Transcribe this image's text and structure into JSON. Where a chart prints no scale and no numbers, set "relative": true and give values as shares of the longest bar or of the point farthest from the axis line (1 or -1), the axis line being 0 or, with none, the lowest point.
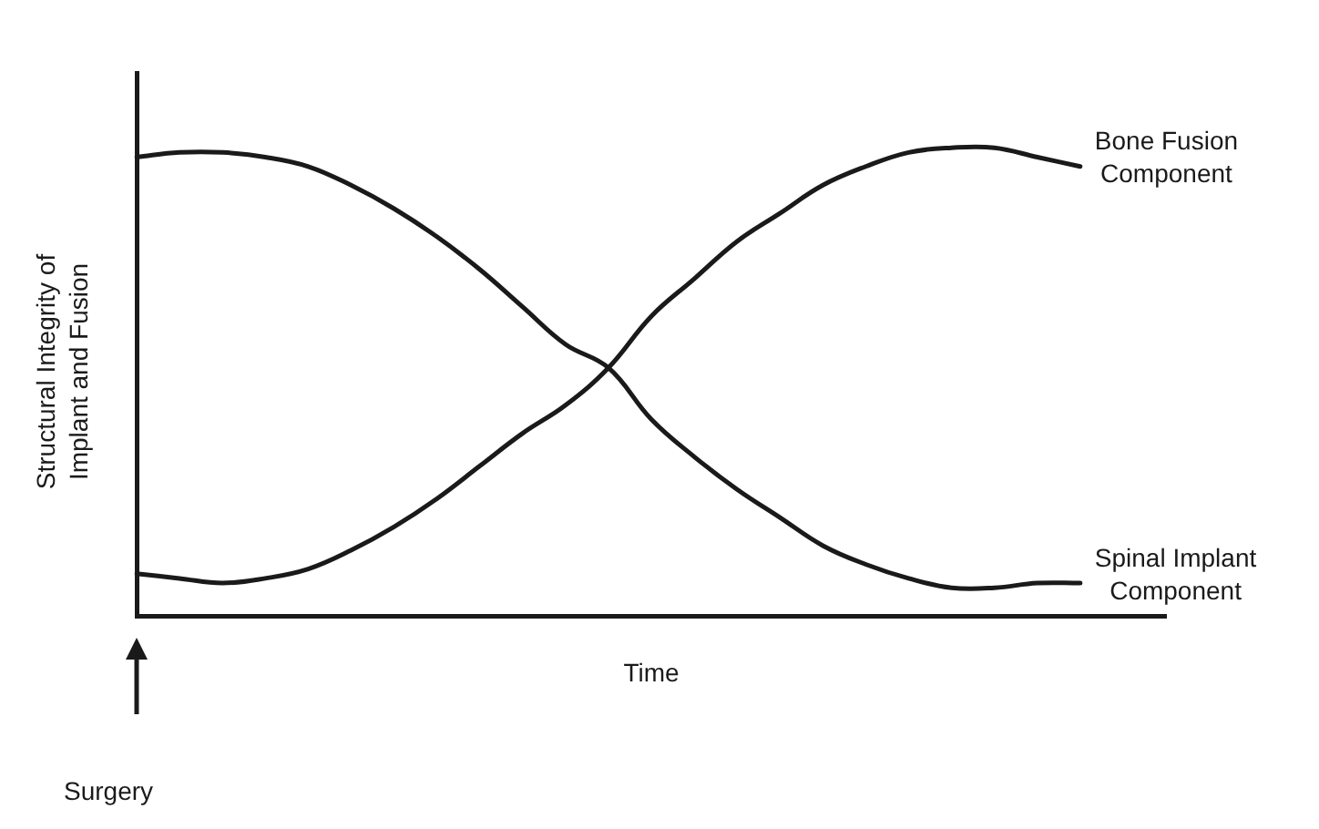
{
  "chart_data": {
    "type": "line",
    "relative": true,
    "xlabel": "Time",
    "ylabel": "Structural Integrity of Implant and Fusion",
    "annotations": [
      "Surgery"
    ],
    "legend": false,
    "grid": false,
    "marker": "none",
    "line_style": "solid",
    "categories": [
      null,
      null,
      null,
      null,
      null,
      null,
      null,
      null,
      null,
      null,
      null,
      null,
      null,
      null,
      null,
      null,
      null,
      null,
      null,
      null,
      null,
      null,
      null,
      null,
      null
    ],
    "series": [
      {
        "name": "Bone Fusion Component",
        "color": "#1a1a1a",
        "values": [
          0.09,
          0.08,
          0.07,
          0.08,
          0.1,
          0.14,
          0.19,
          0.25,
          0.32,
          0.39,
          0.45,
          0.53,
          0.64,
          0.72,
          0.8,
          0.86,
          0.92,
          0.96,
          0.99,
          1.0,
          1.0,
          0.98,
          0.96,
          null,
          null
        ]
      },
      {
        "name": "Spinal Implant Component",
        "color": "#1a1a1a",
        "values": [
          0.98,
          0.99,
          0.99,
          0.98,
          0.96,
          0.92,
          0.87,
          0.81,
          0.74,
          0.66,
          0.58,
          0.53,
          0.42,
          0.34,
          0.27,
          0.21,
          0.15,
          0.11,
          0.08,
          0.06,
          0.06,
          0.07,
          0.07,
          null,
          null
        ]
      }
    ]
  }
}
